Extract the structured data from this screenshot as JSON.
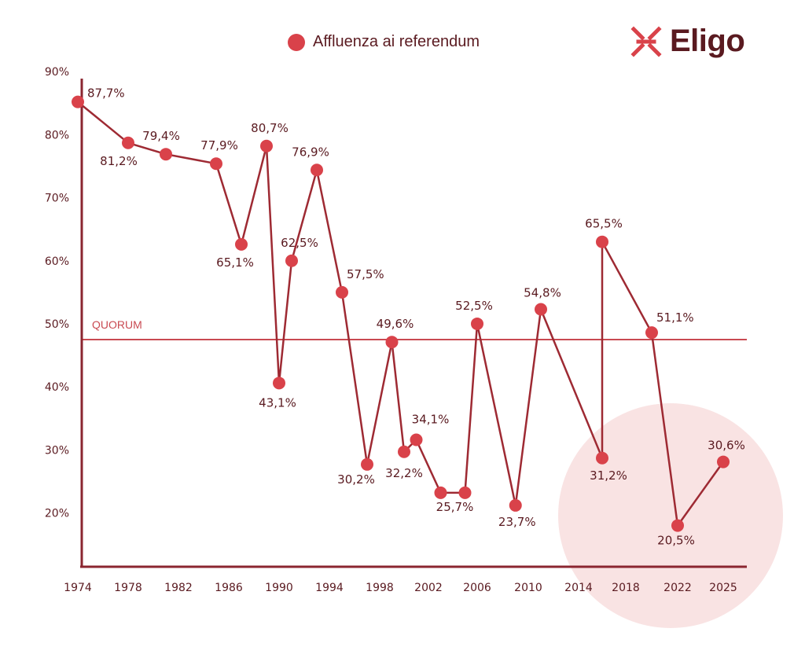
{
  "legend": {
    "label": "Affluenza ai referendum"
  },
  "logo": {
    "text": "Eligo",
    "icon": "eligo-logo-icon"
  },
  "colors": {
    "point": "#d9424a",
    "line": "#9e2a33",
    "axis": "#8b2630",
    "text": "#5a1a20",
    "quorum": "#c94a52",
    "highlight": "#f9e3e3"
  },
  "quorum": {
    "label": "QUORUM",
    "value": 50
  },
  "chart_data": {
    "type": "line",
    "title": "",
    "xlabel": "",
    "ylabel": "",
    "ylim": [
      14,
      91
    ],
    "y_ticks": [
      {
        "value": 20,
        "label": "20%"
      },
      {
        "value": 30,
        "label": "30%"
      },
      {
        "value": 40,
        "label": "40%"
      },
      {
        "value": 50,
        "label": "50%"
      },
      {
        "value": 60,
        "label": "60%"
      },
      {
        "value": 70,
        "label": "70%"
      },
      {
        "value": 80,
        "label": "80%"
      },
      {
        "value": 90,
        "label": "90%"
      }
    ],
    "x_ticks": [
      "1974",
      "1978",
      "1982",
      "1986",
      "1990",
      "1994",
      "1998",
      "2002",
      "2006",
      "2010",
      "2014",
      "2018",
      "2022",
      "2025"
    ],
    "series": [
      {
        "name": "Affluenza ai referendum",
        "points": [
          {
            "x": 1974,
            "y": 87.7,
            "label": "87,7%"
          },
          {
            "x": 1978,
            "y": 81.2,
            "label": "81,2%"
          },
          {
            "x": 1981,
            "y": 79.4,
            "label": "79,4%"
          },
          {
            "x": 1985,
            "y": 77.9,
            "label": "77,9%"
          },
          {
            "x": 1987,
            "y": 65.1,
            "label": "65,1%"
          },
          {
            "x": 1989,
            "y": 80.7,
            "label": "80,7%"
          },
          {
            "x": 1990,
            "y": 43.1,
            "label": "43,1%"
          },
          {
            "x": 1991,
            "y": 62.5,
            "label": "62,5%"
          },
          {
            "x": 1993,
            "y": 76.9,
            "label": "76,9%"
          },
          {
            "x": 1995,
            "y": 57.5,
            "label": "57,5%"
          },
          {
            "x": 1997,
            "y": 30.2,
            "label": "30,2%"
          },
          {
            "x": 1999,
            "y": 49.6,
            "label": "49,6%"
          },
          {
            "x": 2000,
            "y": 32.2,
            "label": "32,2%"
          },
          {
            "x": 2001,
            "y": 34.1,
            "label": "34,1%"
          },
          {
            "x": 2003,
            "y": 25.7,
            "label": "25,7%"
          },
          {
            "x": 2005,
            "y": 25.7,
            "label": ""
          },
          {
            "x": 2006,
            "y": 52.5,
            "label": "52,5%"
          },
          {
            "x": 2009,
            "y": 23.7,
            "label": "23,7%"
          },
          {
            "x": 2011,
            "y": 54.8,
            "label": "54,8%"
          },
          {
            "x": 2016,
            "y": 31.2,
            "label": "31,2%"
          },
          {
            "x": 2016,
            "y": 65.5,
            "label": "65,5%"
          },
          {
            "x": 2020,
            "y": 51.1,
            "label": "51,1%"
          },
          {
            "x": 2022,
            "y": 20.5,
            "label": "20,5%"
          },
          {
            "x": 2025,
            "y": 30.6,
            "label": "30,6%"
          }
        ]
      }
    ],
    "grid": false,
    "legend_position": "top-center"
  }
}
